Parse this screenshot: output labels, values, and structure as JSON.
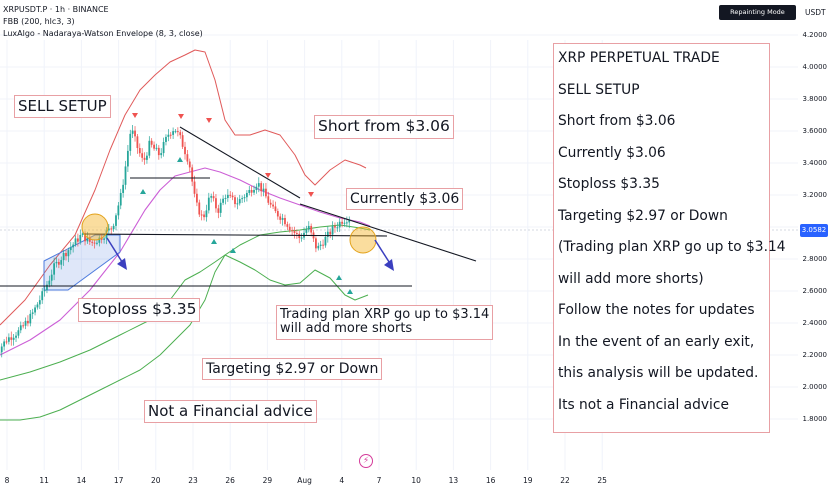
{
  "header": {
    "symbol_line": "XRPUSDT.P · 1h · BINANCE",
    "indicator_1": "FBB (200, hlc3, 3)",
    "indicator_2": "LuxAlgo - Nadaraya-Watson Envelope (8, 3, close)",
    "badge": "Repainting Mode Enabled",
    "currency": "USDT"
  },
  "price_axis": {
    "ticks": [
      "4.2000",
      "4.0000",
      "3.8000",
      "3.6000",
      "3.4000",
      "3.2000",
      "3.0000",
      "2.8000",
      "2.6000",
      "2.4000",
      "2.2000",
      "2.0000",
      "1.8000"
    ],
    "current_price": "3.0582"
  },
  "time_axis": {
    "ticks": [
      "8",
      "11",
      "14",
      "17",
      "20",
      "23",
      "26",
      "29",
      "Aug",
      "4",
      "7",
      "10",
      "13",
      "16",
      "19",
      "22",
      "25"
    ]
  },
  "annotations": {
    "sell_setup": "SELL SETUP",
    "short_from": "Short from $3.06",
    "currently": "Currently $3.06",
    "stoploss": "Stoploss $3.35",
    "trading_plan_1": "Trading plan XRP go up to $3.14",
    "trading_plan_2": "will add more shorts",
    "targeting": "Targeting $2.97 or Down",
    "disclaimer": "Not a Financial advice"
  },
  "notes_panel": {
    "lines": [
      "XRP PERPETUAL TRADE",
      "SELL SETUP",
      "Short from $3.06",
      "Currently $3.06",
      "Stoploss $3.35",
      "Targeting $2.97 or Down",
      "(Trading plan XRP go up to $3.14",
      "will add more shorts)",
      "Follow the notes for updates",
      "In the event of an early exit,",
      "this analysis will be updated.",
      "Its not a Financial advice"
    ]
  },
  "icons": {
    "replay": "lightning-icon"
  },
  "colors": {
    "bullish": "#26a69a",
    "bearish": "#ef5350",
    "upper_band": "#e05a5a",
    "lower_band": "#4caf50",
    "envelope": "#cc5fd6",
    "callout_border": "#e8a0a4",
    "price_tag": "#2962ff",
    "pattern_box": "#4f7cde"
  },
  "chart_data": {
    "type": "candlestick",
    "title": "XRPUSDT.P · 1h · BINANCE",
    "ylim": [
      1.74,
      4.27
    ],
    "x_categories": [
      "8",
      "11",
      "14",
      "17",
      "20",
      "23",
      "26",
      "29",
      "Aug",
      "4",
      "7",
      "10",
      "13",
      "16",
      "19",
      "22",
      "25"
    ],
    "last_price": 3.0582,
    "close_path": [
      [
        7.0,
        2.2
      ],
      [
        8.0,
        2.3
      ],
      [
        9.0,
        2.35
      ],
      [
        10.0,
        2.45
      ],
      [
        11.0,
        2.6
      ],
      [
        11.8,
        2.75
      ],
      [
        12.5,
        2.82
      ],
      [
        13.2,
        2.88
      ],
      [
        14.0,
        2.95
      ],
      [
        14.8,
        2.9
      ],
      [
        15.5,
        2.93
      ],
      [
        16.5,
        3.0
      ],
      [
        17.2,
        3.2
      ],
      [
        17.7,
        3.45
      ],
      [
        18.0,
        3.62
      ],
      [
        18.5,
        3.5
      ],
      [
        19.0,
        3.4
      ],
      [
        19.5,
        3.52
      ],
      [
        20.3,
        3.45
      ],
      [
        21.0,
        3.58
      ],
      [
        21.5,
        3.62
      ],
      [
        22.0,
        3.55
      ],
      [
        22.7,
        3.4
      ],
      [
        23.2,
        3.15
      ],
      [
        23.8,
        3.05
      ],
      [
        24.4,
        3.2
      ],
      [
        25.0,
        3.1
      ],
      [
        25.6,
        3.2
      ],
      [
        26.5,
        3.15
      ],
      [
        27.5,
        3.22
      ],
      [
        28.2,
        3.28
      ],
      [
        28.8,
        3.2
      ],
      [
        29.5,
        3.1
      ],
      [
        30.3,
        3.05
      ],
      [
        31.0,
        2.98
      ],
      [
        31.6,
        2.93
      ],
      [
        32.3,
        3.0
      ],
      [
        33.0,
        2.86
      ],
      [
        33.6,
        2.92
      ],
      [
        34.3,
        2.99
      ],
      [
        35.0,
        3.04
      ],
      [
        35.6,
        3.06
      ]
    ],
    "levels": {
      "short_entry": 3.06,
      "stoploss": 3.35,
      "target": 2.97,
      "add_shorts": 3.14,
      "lower_support": 2.74
    },
    "series": [
      {
        "name": "FBB (200, hlc3, 3)",
        "role": "upper_band"
      },
      {
        "name": "FBB (200, hlc3, 3)",
        "role": "lower_band"
      },
      {
        "name": "LuxAlgo - Nadaraya-Watson Envelope (8, 3, close)",
        "role": "envelope"
      }
    ]
  }
}
